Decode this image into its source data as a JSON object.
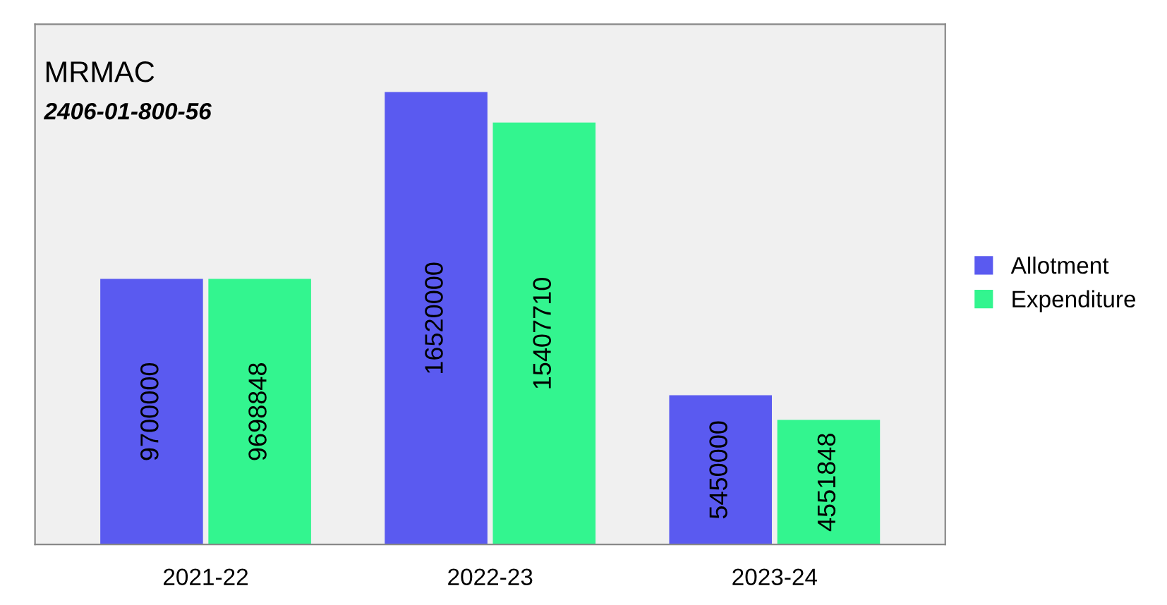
{
  "chart_data": {
    "type": "bar",
    "title": "MRMAC",
    "subtitle": "2406-01-800-56",
    "categories": [
      "2021-22",
      "2022-23",
      "2023-24"
    ],
    "series": [
      {
        "name": "Allotment",
        "color": "#5a5af0",
        "values": [
          9700000,
          16520000,
          5450000
        ]
      },
      {
        "name": "Expenditure",
        "color": "#33f58f",
        "values": [
          9698848,
          15407710,
          4551848
        ]
      }
    ],
    "data_labels": true,
    "legend": "right",
    "tick_labels": "x"
  }
}
